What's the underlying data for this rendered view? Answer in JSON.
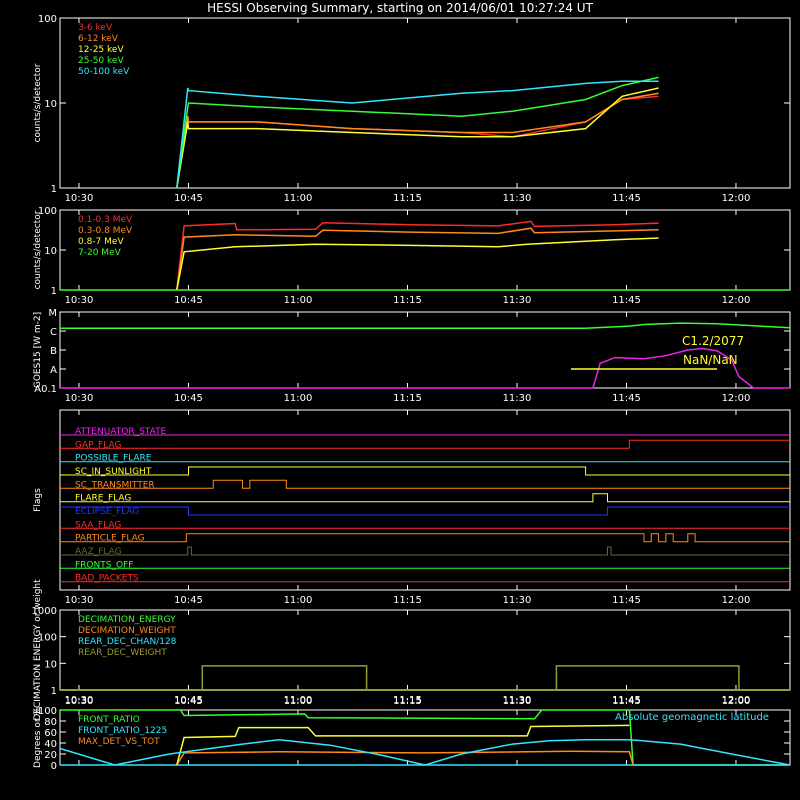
{
  "title": "HESSI Observing Summary, starting on 2014/06/01 10:27:24 UT",
  "time_ticks": [
    "10:30",
    "10:45",
    "11:00",
    "11:15",
    "11:30",
    "11:45",
    "12:00"
  ],
  "time_tick_minutes": [
    2.6,
    17.6,
    32.6,
    47.6,
    62.6,
    77.6,
    92.6
  ],
  "time_range_minutes": [
    0,
    100
  ],
  "chart_data": [
    {
      "type": "line",
      "name": "low-energy-lightcurves",
      "ylabel": "counts/s/detector",
      "yscale": "log",
      "ylim": [
        1,
        100
      ],
      "ytick_labels": [
        "1",
        "10",
        "100"
      ],
      "yticks": [
        1,
        10,
        100
      ],
      "legend_placement": "top-left",
      "series": [
        {
          "name": "3-6 keV",
          "color": "#ff2a2a",
          "x": [
            16,
            17.5,
            17.6,
            27,
            40,
            55,
            62,
            72,
            77,
            82
          ],
          "y": [
            1,
            7,
            6,
            6,
            5,
            4.5,
            4,
            6,
            11,
            12
          ]
        },
        {
          "name": "6-12 keV",
          "color": "#ff8a1a",
          "x": [
            16,
            17.5,
            17.6,
            27,
            40,
            55,
            62,
            72,
            77,
            82
          ],
          "y": [
            1,
            7,
            6,
            6,
            5,
            4.5,
            4.5,
            6,
            11,
            13
          ]
        },
        {
          "name": "12-25 keV",
          "color": "#ffff30",
          "x": [
            16,
            17.5,
            17.6,
            27,
            40,
            55,
            62,
            72,
            77,
            82
          ],
          "y": [
            1,
            6,
            5,
            5,
            4.5,
            4,
            4,
            5,
            12,
            15
          ]
        },
        {
          "name": "25-50 keV",
          "color": "#33ff33",
          "x": [
            16,
            17.5,
            17.6,
            27,
            40,
            55,
            62,
            72,
            77,
            82
          ],
          "y": [
            1,
            9,
            10,
            9,
            8,
            7,
            8,
            11,
            16,
            20
          ]
        },
        {
          "name": "50-100 keV",
          "color": "#33e6ff",
          "x": [
            16,
            17.5,
            17.6,
            27,
            40,
            55,
            62,
            72,
            77,
            82
          ],
          "y": [
            1,
            15,
            14,
            12,
            10,
            13,
            14,
            17,
            18,
            18
          ]
        }
      ]
    },
    {
      "type": "line",
      "name": "high-energy-lightcurves",
      "ylabel": "counts/s/detector",
      "yscale": "log",
      "ylim": [
        1,
        100
      ],
      "ytick_labels": [
        "1",
        "10",
        "100"
      ],
      "yticks": [
        1,
        10,
        100
      ],
      "legend_placement": "top-left",
      "series": [
        {
          "name": "0.1-0.3 MeV",
          "color": "#ff2a2a",
          "x": [
            16,
            17,
            24,
            24.2,
            35,
            36,
            48,
            60,
            64.5,
            65,
            76,
            82
          ],
          "y": [
            1,
            40,
            46,
            32,
            33,
            48,
            43,
            40,
            52,
            39,
            43,
            47
          ]
        },
        {
          "name": "0.3-0.8 MeV",
          "color": "#ff8a1a",
          "x": [
            16,
            17,
            24,
            35,
            36,
            48,
            60,
            64.5,
            65,
            76,
            82
          ],
          "y": [
            1,
            21,
            24,
            22,
            31,
            28,
            26,
            35,
            27,
            30,
            32
          ]
        },
        {
          "name": "0.8-7 MeV",
          "color": "#ffff30",
          "x": [
            16,
            17,
            24,
            35,
            48,
            60,
            64,
            76,
            82
          ],
          "y": [
            1,
            9,
            12,
            14,
            13,
            12,
            14,
            18,
            20
          ]
        },
        {
          "name": "7-20 MeV",
          "color": "#33ff33",
          "x": [
            0,
            100
          ],
          "y": [
            1,
            1
          ]
        }
      ]
    },
    {
      "type": "line",
      "name": "goes15",
      "ylabel": "GOES15 [W m-2]",
      "yscale": "log",
      "ytick_labels": [
        "A0.1",
        "A",
        "B",
        "C",
        "M"
      ],
      "yticks": [
        1e-09,
        1e-08,
        1e-07,
        1e-06,
        1e-05
      ],
      "ylim": [
        1e-09,
        1e-05
      ],
      "annotations": [
        "C1.2/2077",
        "NaN/NaN"
      ],
      "series": [
        {
          "name": "1-8 A",
          "color": "#33ff33",
          "x": [
            0,
            20,
            40,
            60,
            72,
            78,
            80,
            85,
            90,
            100
          ],
          "y": [
            1.4e-06,
            1.4e-06,
            1.4e-06,
            1.4e-06,
            1.4e-06,
            1.8e-06,
            2.2e-06,
            2.6e-06,
            2.4e-06,
            1.5e-06
          ]
        },
        {
          "name": "0.5-4 A",
          "color": "#ee22ee",
          "x": [
            0,
            73,
            74,
            76,
            80,
            83,
            86,
            88,
            90,
            92,
            93,
            95,
            100
          ],
          "y": [
            1e-09,
            1e-09,
            2e-08,
            4e-08,
            3.5e-08,
            5e-08,
            1e-07,
            1.2e-07,
            9e-08,
            3e-08,
            4e-09,
            1e-09,
            1e-09
          ]
        },
        {
          "name": "threshold",
          "color": "#ffff30",
          "x": [
            70,
            90
          ],
          "y": [
            1e-08,
            1e-08
          ]
        }
      ]
    },
    {
      "type": "line",
      "name": "flags",
      "ylabel": "Flags",
      "series": [
        {
          "name": "ATTENUATOR_STATE",
          "color": "#ee22ee",
          "x": [
            0,
            100
          ],
          "y": [
            0,
            0
          ]
        },
        {
          "name": "GAP_FLAG",
          "color": "#ff2a2a",
          "x": [
            0,
            78,
            78,
            100
          ],
          "y": [
            0,
            0,
            1,
            1
          ]
        },
        {
          "name": "POSSIBLE_FLARE",
          "color": "#33e6ff",
          "x": [
            0,
            100
          ],
          "y": [
            0,
            0
          ]
        },
        {
          "name": "SC_IN_SUNLIGHT",
          "color": "#ffff30",
          "x": [
            0,
            17.6,
            17.6,
            72,
            72,
            100
          ],
          "y": [
            0,
            0,
            1,
            1,
            0,
            0
          ]
        },
        {
          "name": "SC_TRANSMITTER",
          "color": "#ff8a1a",
          "x": [
            0,
            21,
            21,
            25,
            25,
            26,
            26,
            31,
            31,
            100
          ],
          "y": [
            0,
            0,
            1,
            1,
            0,
            0,
            1,
            1,
            0,
            0
          ]
        },
        {
          "name": "FLARE_FLAG",
          "color": "#ffff30",
          "x": [
            0,
            73,
            73,
            75,
            75,
            100
          ],
          "y": [
            0,
            0,
            1,
            1,
            0,
            0
          ]
        },
        {
          "name": "ECLIPSE_FLAG",
          "color": "#2233ff",
          "x": [
            0,
            17.6,
            17.6,
            75,
            75,
            100
          ],
          "y": [
            1,
            1,
            0,
            0,
            1,
            1
          ]
        },
        {
          "name": "SAA_FLAG",
          "color": "#ff2a2a",
          "x": [
            0,
            100
          ],
          "y": [
            0,
            0
          ]
        },
        {
          "name": "PARTICLE_FLAG",
          "color": "#ff8a1a",
          "x": [
            0,
            17.3,
            17.3,
            80,
            80,
            81,
            81,
            82,
            82,
            83,
            83,
            84,
            84,
            86,
            86,
            87,
            87,
            100
          ],
          "y": [
            0,
            0,
            1,
            1,
            0,
            0,
            1,
            1,
            0,
            0,
            1,
            1,
            0,
            0,
            1,
            1,
            0,
            0
          ]
        },
        {
          "name": "AAZ_FLAG",
          "color": "#666633",
          "x": [
            0,
            17.5,
            17.5,
            18,
            18,
            75,
            75,
            75.5,
            75.5,
            100
          ],
          "y": [
            0,
            0,
            1,
            1,
            0,
            0,
            1,
            1,
            0,
            0
          ]
        },
        {
          "name": "FRONTS_OFF",
          "color": "#33ff33",
          "x": [
            0,
            100
          ],
          "y": [
            0,
            0
          ]
        },
        {
          "name": "BAD_PACKETS",
          "color": "#ff2a2a",
          "x": [
            0,
            100
          ],
          "y": [
            0,
            0
          ]
        }
      ]
    },
    {
      "type": "line",
      "name": "decimation",
      "ylabel": "DECIMATION ENERGY or weight",
      "yscale": "log",
      "ylim": [
        1,
        1000
      ],
      "ytick_labels": [
        "1",
        "10",
        "100",
        "1000"
      ],
      "yticks": [
        1,
        10,
        100,
        1000
      ],
      "series": [
        {
          "name": "DECIMATION_ENERGY",
          "color": "#33ff33",
          "x": [
            0,
            100
          ],
          "y": [
            1,
            1
          ]
        },
        {
          "name": "DECIMATION_WEIGHT",
          "color": "#ff8a1a",
          "x": [
            0,
            100
          ],
          "y": [
            1,
            1
          ]
        },
        {
          "name": "REAR_DEC_CHAN/128",
          "color": "#33e6ff",
          "x": [
            0,
            100
          ],
          "y": [
            1,
            1
          ]
        },
        {
          "name": "REAR_DEC_WEIGHT",
          "color": "#999933",
          "x": [
            0,
            100
          ],
          "y": [
            1,
            1
          ]
        },
        {
          "name": "REAR_DEC_WEIGHT_box",
          "color": "#999933",
          "x": [
            0,
            19.5,
            19.5,
            42,
            42,
            68,
            68,
            93,
            93,
            100
          ],
          "y": [
            1,
            1,
            8,
            8,
            1,
            1,
            8,
            8,
            1,
            1
          ]
        }
      ]
    },
    {
      "type": "line",
      "name": "ratios",
      "ylabel": "Degrees or %",
      "ylim": [
        0,
        100
      ],
      "ytick_labels": [
        "0",
        "20",
        "40",
        "60",
        "80",
        "100"
      ],
      "yticks": [
        0,
        20,
        40,
        60,
        80,
        100
      ],
      "annotations": [
        "Absolute geomagnetic latitude"
      ],
      "series": [
        {
          "name": "FRONT_RATIO",
          "color": "#33ff33",
          "x": [
            0,
            16.5,
            17,
            33.5,
            34,
            65,
            66,
            78,
            78.5,
            100
          ],
          "y": [
            100,
            100,
            90,
            93,
            86,
            84,
            100,
            100,
            0,
            0
          ]
        },
        {
          "name": "FRONT_RATIO_1225",
          "color": "#33e6ff",
          "x": [
            0,
            100
          ],
          "y": [
            0,
            0
          ]
        },
        {
          "name": "MAX_DET_VS_TOT",
          "color": "#ff8a1a",
          "x": [
            16,
            17,
            30,
            50,
            70,
            78,
            78.5
          ],
          "y": [
            0,
            22,
            24,
            22,
            25,
            24,
            0
          ]
        },
        {
          "name": "yellow",
          "color": "#ffff30",
          "x": [
            16,
            17,
            24,
            24.5,
            34,
            35,
            64,
            64.5,
            78
          ],
          "y": [
            0,
            50,
            52,
            68,
            68,
            53,
            53,
            70,
            72
          ]
        },
        {
          "name": "geomag",
          "color": "#33e6ff",
          "x": [
            0,
            7.5,
            15,
            25,
            30,
            37,
            44,
            50,
            55,
            62,
            67,
            72,
            78,
            85,
            92,
            100
          ],
          "y": [
            30,
            0,
            20,
            38,
            46,
            36,
            18,
            0,
            20,
            38,
            44,
            46,
            46,
            38,
            20,
            0
          ]
        }
      ]
    }
  ]
}
